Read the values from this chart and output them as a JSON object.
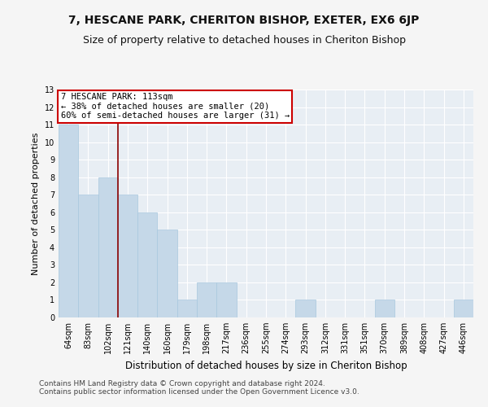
{
  "title1": "7, HESCANE PARK, CHERITON BISHOP, EXETER, EX6 6JP",
  "title2": "Size of property relative to detached houses in Cheriton Bishop",
  "xlabel": "Distribution of detached houses by size in Cheriton Bishop",
  "ylabel": "Number of detached properties",
  "categories": [
    "64sqm",
    "83sqm",
    "102sqm",
    "121sqm",
    "140sqm",
    "160sqm",
    "179sqm",
    "198sqm",
    "217sqm",
    "236sqm",
    "255sqm",
    "274sqm",
    "293sqm",
    "312sqm",
    "331sqm",
    "351sqm",
    "370sqm",
    "389sqm",
    "408sqm",
    "427sqm",
    "446sqm"
  ],
  "values": [
    11,
    7,
    8,
    7,
    6,
    5,
    1,
    2,
    2,
    0,
    0,
    0,
    1,
    0,
    0,
    0,
    1,
    0,
    0,
    0,
    1
  ],
  "bar_color": "#c5d8e8",
  "bar_edgecolor": "#a8c8de",
  "vline_color": "#8b0000",
  "vline_x_index": 2,
  "annotation_line1": "7 HESCANE PARK: 113sqm",
  "annotation_line2": "← 38% of detached houses are smaller (20)",
  "annotation_line3": "60% of semi-detached houses are larger (31) →",
  "annotation_box_color": "#ffffff",
  "annotation_box_edgecolor": "#cc0000",
  "ylim": [
    0,
    13
  ],
  "yticks": [
    0,
    1,
    2,
    3,
    4,
    5,
    6,
    7,
    8,
    9,
    10,
    11,
    12,
    13
  ],
  "footer1": "Contains HM Land Registry data © Crown copyright and database right 2024.",
  "footer2": "Contains public sector information licensed under the Open Government Licence v3.0.",
  "plot_bg_color": "#e8eef4",
  "fig_bg_color": "#f5f5f5",
  "grid_color": "#ffffff",
  "title1_fontsize": 10,
  "title2_fontsize": 9,
  "xlabel_fontsize": 8.5,
  "ylabel_fontsize": 8,
  "tick_fontsize": 7,
  "annotation_fontsize": 7.5,
  "footer_fontsize": 6.5
}
